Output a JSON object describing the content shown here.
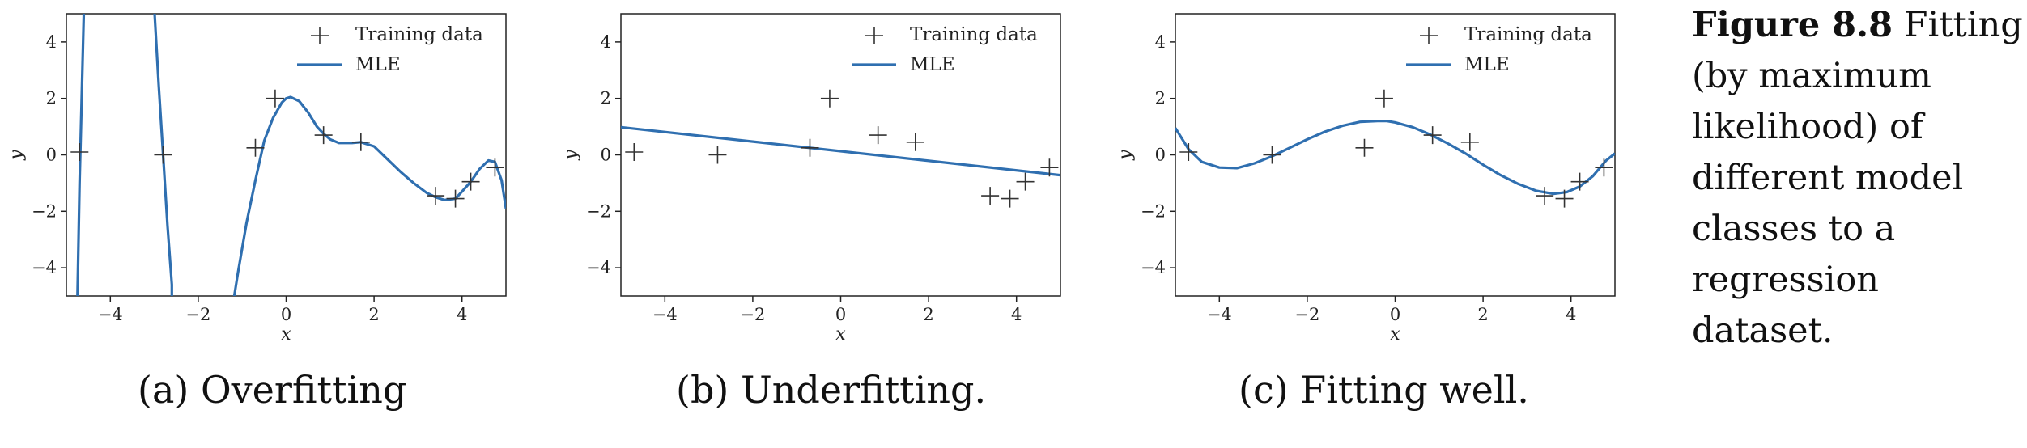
{
  "figure_caption": {
    "label": "Figure 8.8",
    "text": "Fitting (by maximum likelihood) of different model classes to a regression dataset."
  },
  "panel_captions": [
    "(a) Overfitting",
    "(b) Underfitting.",
    "(c) Fitting well."
  ],
  "colors": {
    "mle_line": "#2f6fb0",
    "markers": "#333333",
    "axes": "#222222"
  },
  "chart_data": [
    {
      "type": "line",
      "xlabel": "x",
      "ylabel": "y",
      "xlim": [
        -5,
        5
      ],
      "ylim": [
        -5,
        5
      ],
      "xticks": [
        -4,
        -2,
        0,
        2,
        4
      ],
      "yticks": [
        -4,
        -2,
        0,
        2,
        4
      ],
      "grid": false,
      "legend": "top-right",
      "series": [
        {
          "name": "Training data",
          "marker": "+",
          "x": [
            -4.7,
            -2.8,
            -0.7,
            -0.25,
            0.85,
            1.7,
            3.4,
            3.85,
            4.2,
            4.75
          ],
          "y": [
            0.1,
            0.0,
            0.25,
            2.0,
            0.7,
            0.45,
            -1.45,
            -1.55,
            -0.95,
            -0.45
          ]
        },
        {
          "name": "MLE",
          "x": [
            -4.75,
            -4.7,
            -4.6,
            -3.0,
            -2.9,
            -2.8,
            -2.7,
            -2.6,
            -2.6,
            -1.2,
            -1.1,
            -0.9,
            -0.7,
            -0.5,
            -0.3,
            -0.1,
            0.0,
            0.1,
            0.3,
            0.5,
            0.7,
            0.85,
            1.0,
            1.2,
            1.5,
            1.7,
            2.0,
            2.3,
            2.6,
            2.9,
            3.2,
            3.4,
            3.6,
            3.85,
            4.0,
            4.2,
            4.4,
            4.6,
            4.75,
            4.9,
            5.0
          ],
          "y": [
            -5.2,
            -1.0,
            5.2,
            5.2,
            2.5,
            0.0,
            -2.5,
            -4.6,
            -5.2,
            -5.2,
            -4.2,
            -2.4,
            -0.9,
            0.5,
            1.3,
            1.85,
            2.0,
            2.05,
            1.9,
            1.5,
            1.0,
            0.75,
            0.55,
            0.42,
            0.42,
            0.45,
            0.3,
            -0.15,
            -0.6,
            -1.0,
            -1.35,
            -1.5,
            -1.6,
            -1.55,
            -1.3,
            -0.95,
            -0.5,
            -0.2,
            -0.25,
            -0.9,
            -1.9
          ]
        }
      ]
    },
    {
      "type": "line",
      "xlabel": "x",
      "ylabel": "y",
      "xlim": [
        -5,
        5
      ],
      "ylim": [
        -5,
        5
      ],
      "xticks": [
        -4,
        -2,
        0,
        2,
        4
      ],
      "yticks": [
        -4,
        -2,
        0,
        2,
        4
      ],
      "grid": false,
      "legend": "top-right",
      "series": [
        {
          "name": "Training data",
          "marker": "+",
          "x": [
            -4.7,
            -2.8,
            -0.7,
            -0.25,
            0.85,
            1.7,
            3.4,
            3.85,
            4.2,
            4.75
          ],
          "y": [
            0.1,
            0.0,
            0.25,
            2.0,
            0.7,
            0.45,
            -1.45,
            -1.55,
            -0.95,
            -0.45
          ]
        },
        {
          "name": "MLE",
          "x": [
            -5,
            5
          ],
          "y": [
            0.98,
            -0.72
          ]
        }
      ]
    },
    {
      "type": "line",
      "xlabel": "x",
      "ylabel": "y",
      "xlim": [
        -5,
        5
      ],
      "ylim": [
        -5,
        5
      ],
      "xticks": [
        -4,
        -2,
        0,
        2,
        4
      ],
      "yticks": [
        -4,
        -2,
        0,
        2,
        4
      ],
      "grid": false,
      "legend": "top-right",
      "series": [
        {
          "name": "Training data",
          "marker": "+",
          "x": [
            -4.7,
            -2.8,
            -0.7,
            -0.25,
            0.85,
            1.7,
            3.4,
            3.85,
            4.2,
            4.75
          ],
          "y": [
            0.1,
            0.0,
            0.25,
            2.0,
            0.7,
            0.45,
            -1.45,
            -1.55,
            -0.95,
            -0.45
          ]
        },
        {
          "name": "MLE",
          "x": [
            -5.0,
            -4.7,
            -4.4,
            -4.0,
            -3.6,
            -3.2,
            -2.8,
            -2.4,
            -2.0,
            -1.6,
            -1.2,
            -0.8,
            -0.4,
            -0.2,
            0.0,
            0.4,
            0.8,
            1.2,
            1.6,
            2.0,
            2.4,
            2.8,
            3.2,
            3.6,
            3.9,
            4.2,
            4.5,
            4.8,
            5.0
          ],
          "y": [
            0.95,
            0.2,
            -0.25,
            -0.45,
            -0.47,
            -0.3,
            -0.05,
            0.25,
            0.55,
            0.82,
            1.03,
            1.17,
            1.2,
            1.2,
            1.15,
            0.98,
            0.72,
            0.4,
            0.05,
            -0.35,
            -0.72,
            -1.03,
            -1.27,
            -1.38,
            -1.32,
            -1.12,
            -0.75,
            -0.2,
            0.05
          ]
        }
      ]
    }
  ]
}
